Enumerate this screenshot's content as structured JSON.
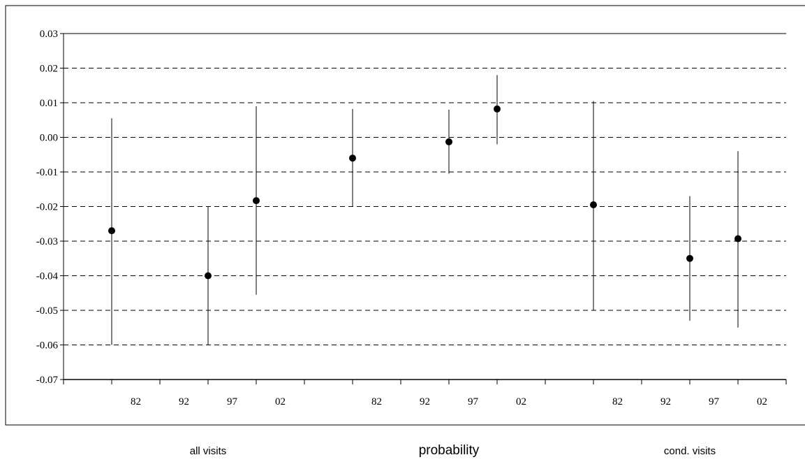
{
  "chart_data": {
    "type": "scatter",
    "subtype": "error-bar",
    "title": "",
    "xlabel": "",
    "ylabel": "",
    "ylim": [
      -0.07,
      0.03
    ],
    "ytick_step": 0.01,
    "yticks": [
      "0.03",
      "0.02",
      "0.01",
      "0.00",
      "-0.01",
      "-0.02",
      "-0.03",
      "-0.04",
      "-0.05",
      "-0.06",
      "-0.07"
    ],
    "grid": "horizontal-dashed",
    "groups": [
      {
        "label": "all visits",
        "center_label": false
      },
      {
        "label": "probability",
        "center_label": true
      },
      {
        "label": "cond. visits",
        "center_label": false
      }
    ],
    "categories": [
      "82",
      "92",
      "97",
      "02",
      "",
      "82",
      "92",
      "97",
      "02",
      "",
      "82",
      "92",
      "97",
      "02"
    ],
    "series": [
      {
        "points": [
          {
            "category_index": 0,
            "x_offset": 0.5,
            "y": -0.027,
            "low": -0.06,
            "high": 0.0055
          },
          {
            "category_index": 2,
            "x_offset": 0.5,
            "y": -0.04,
            "low": -0.06,
            "high": -0.02
          },
          {
            "category_index": 3,
            "x_offset": 0.5,
            "y": -0.0183,
            "low": -0.0455,
            "high": 0.009
          },
          {
            "category_index": 5,
            "x_offset": 0.5,
            "y": -0.006,
            "low": -0.02,
            "high": 0.0082
          },
          {
            "category_index": 7,
            "x_offset": 0.5,
            "y": -0.0013,
            "low": -0.0105,
            "high": 0.008
          },
          {
            "category_index": 8,
            "x_offset": 0.5,
            "y": 0.0082,
            "low": -0.002,
            "high": 0.018
          },
          {
            "category_index": 10,
            "x_offset": 0.5,
            "y": -0.0195,
            "low": -0.05,
            "high": 0.0105
          },
          {
            "category_index": 12,
            "x_offset": 0.5,
            "y": -0.035,
            "low": -0.053,
            "high": -0.017
          },
          {
            "category_index": 13,
            "x_offset": 0.5,
            "y": -0.0293,
            "low": -0.055,
            "high": -0.004
          }
        ]
      }
    ]
  }
}
